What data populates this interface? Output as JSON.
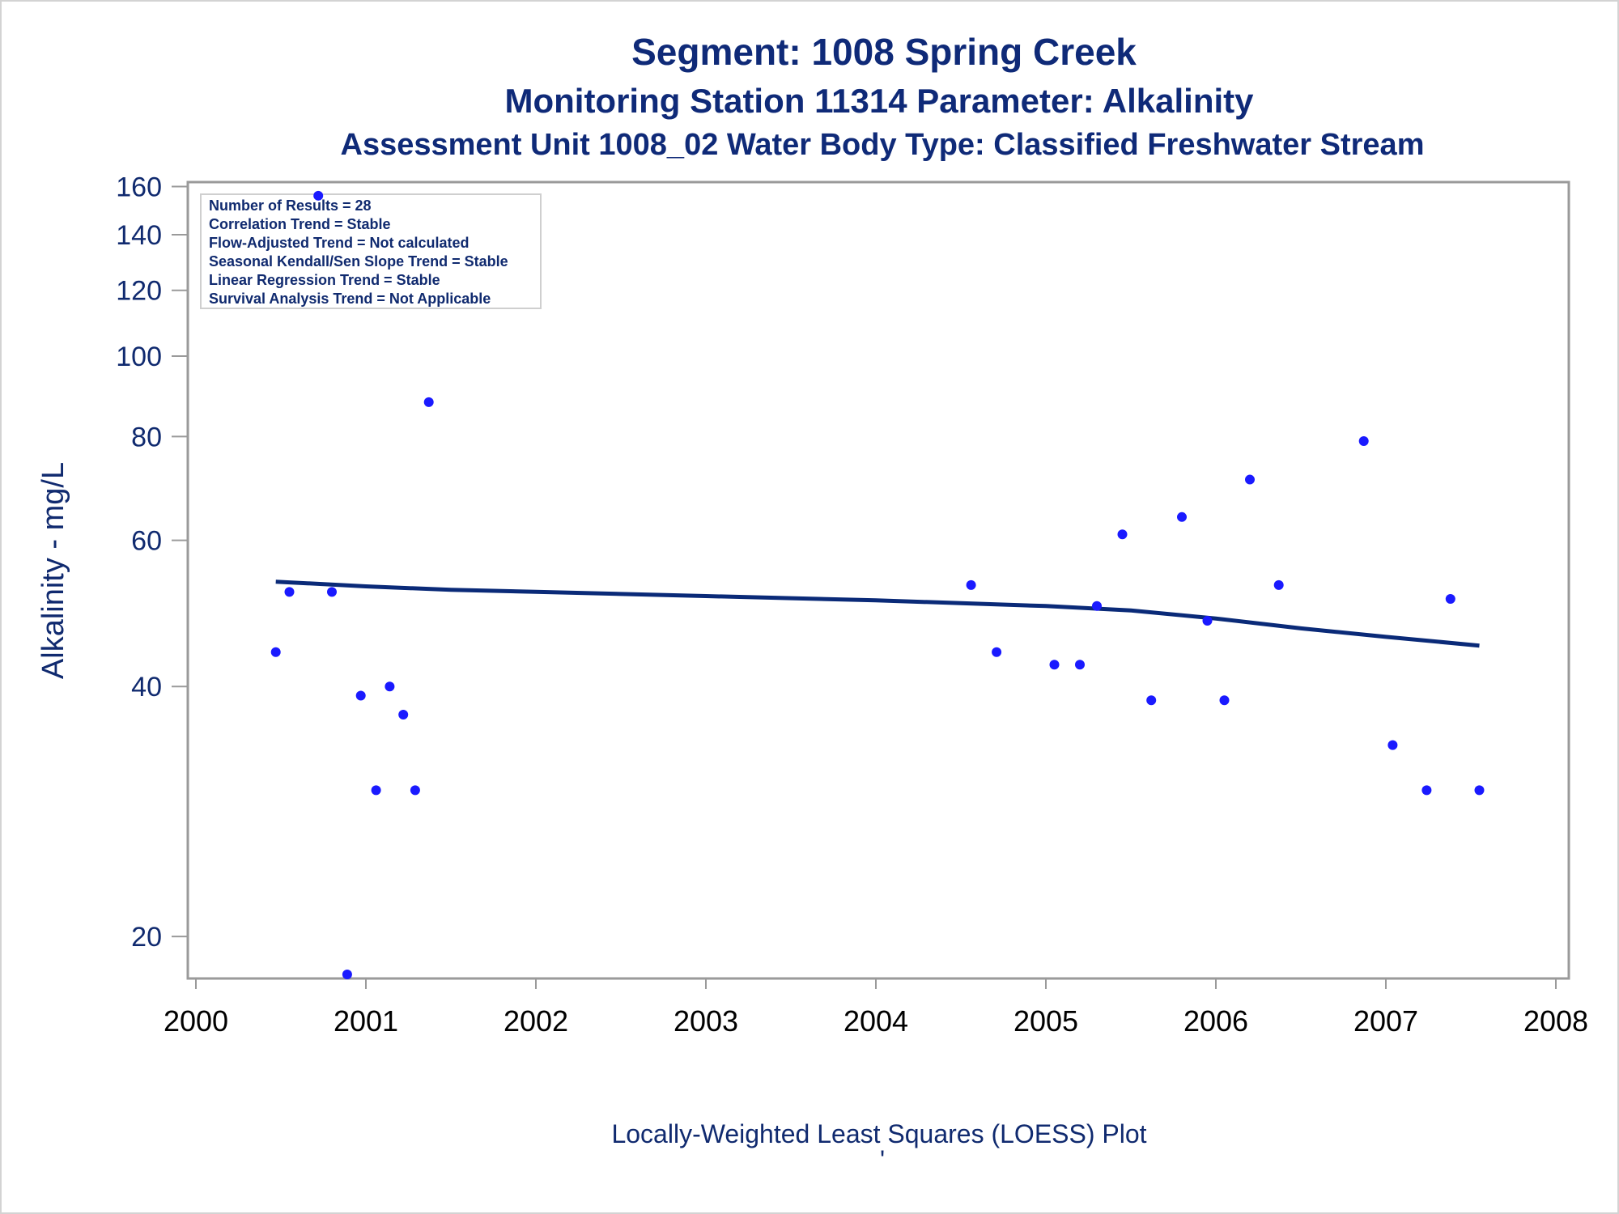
{
  "titles": {
    "line1": "Segment: 1008  Spring Creek",
    "line2": "Monitoring Station 11314 Parameter: Alkalinity",
    "line3": "Assessment Unit 1008_02   Water Body Type: Classified Freshwater Stream"
  },
  "stats_box": {
    "lines": [
      "Number of Results = 28",
      "Correlation Trend = Stable",
      "Flow-Adjusted Trend = Not calculated",
      "Seasonal Kendall/Sen Slope Trend = Stable",
      "Linear Regression Trend = Stable",
      "Survival Analysis Trend = Not Applicable"
    ]
  },
  "footnote": {
    "text": "Locally-Weighted Least Squares (LOESS) Plot",
    "mark": "'"
  },
  "colors": {
    "points": "#1a1aff",
    "loess": "#0a2a78",
    "axis": "#808080",
    "text": "#102a6f"
  },
  "chart_data": {
    "type": "scatter",
    "title": "Segment: 1008  Spring Creek",
    "xlabel": "",
    "ylabel": "Alkalinity - mg/L",
    "yscale": "log",
    "xlim": [
      2000,
      2008
    ],
    "ylim": [
      17.8,
      162
    ],
    "xticks": [
      2000,
      2001,
      2002,
      2003,
      2004,
      2005,
      2006,
      2007,
      2008
    ],
    "yticks": [
      20,
      40,
      60,
      80,
      100,
      120,
      140,
      160
    ],
    "grid": false,
    "legend": "top-left",
    "series": [
      {
        "kind": "points",
        "x": [
          2000.47,
          2000.55,
          2000.72,
          2000.8,
          2000.89,
          2000.97,
          2001.06,
          2001.14,
          2001.22,
          2001.29,
          2001.37,
          2004.56,
          2004.71,
          2005.05,
          2005.2,
          2005.3,
          2005.45,
          2005.62,
          2005.8,
          2005.95,
          2006.05,
          2006.2,
          2006.37,
          2006.87,
          2007.04,
          2007.24,
          2007.38,
          2007.55
        ],
        "y": [
          44,
          52,
          156,
          52,
          18,
          39,
          30,
          40,
          37,
          30,
          88,
          53,
          44,
          42.5,
          42.5,
          50,
          61,
          38.5,
          64,
          48,
          38.5,
          71,
          53,
          79,
          34,
          30,
          51,
          30
        ]
      },
      {
        "kind": "loess",
        "x": [
          2000.47,
          2001.0,
          2001.5,
          2002.0,
          2002.5,
          2003.0,
          2003.5,
          2004.0,
          2004.5,
          2005.0,
          2005.5,
          2006.0,
          2006.5,
          2007.0,
          2007.55
        ],
        "y": [
          53.5,
          52.8,
          52.3,
          52.0,
          51.7,
          51.4,
          51.1,
          50.8,
          50.4,
          50.0,
          49.4,
          48.3,
          47.0,
          45.9,
          44.8
        ]
      }
    ]
  }
}
